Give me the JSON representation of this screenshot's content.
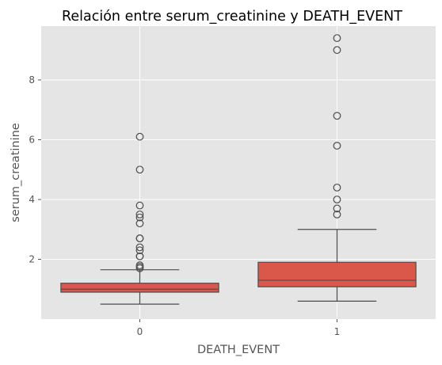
{
  "chart_data": {
    "type": "box",
    "title": "Relación entre serum_creatinine y DEATH_EVENT",
    "xlabel": "DEATH_EVENT",
    "ylabel": "serum_creatinine",
    "categories": [
      "0",
      "1"
    ],
    "ylim": [
      0.0,
      9.8
    ],
    "yticks": [
      2,
      4,
      6,
      8
    ],
    "grid": true,
    "box_color": "#d9584a",
    "background_color": "#e5e5e5",
    "boxes": [
      {
        "category": "0",
        "whisker_low": 0.5,
        "q1": 0.9,
        "median": 1.0,
        "q3": 1.2,
        "whisker_high": 1.65,
        "outliers": [
          1.7,
          1.75,
          1.8,
          2.1,
          2.1,
          2.3,
          2.4,
          2.7,
          2.7,
          3.2,
          3.4,
          3.5,
          3.8,
          5.0,
          6.1
        ]
      },
      {
        "category": "1",
        "whisker_low": 0.6,
        "q1": 1.08,
        "median": 1.3,
        "q3": 1.9,
        "whisker_high": 3.0,
        "outliers": [
          3.5,
          3.7,
          4.0,
          4.4,
          5.8,
          6.8,
          9.0,
          9.4
        ]
      }
    ]
  }
}
